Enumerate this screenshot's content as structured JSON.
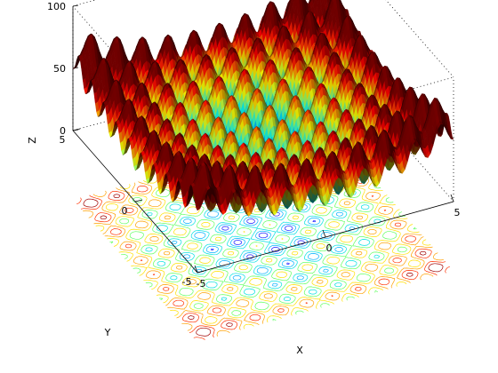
{
  "chart_data": {
    "type": "surface",
    "function": "Rastrigin",
    "formula": "Z = 20 + X^2 + Y^2 - 10*(cos(2*pi*X) + cos(2*pi*Y))",
    "grid_step": 0.1,
    "xlim": [
      -5,
      5
    ],
    "ylim": [
      -5,
      5
    ],
    "zlim": [
      0,
      100
    ],
    "xlabel": "X",
    "ylabel": "Y",
    "zlabel": "Z",
    "x_ticks": [
      {
        "value": -5,
        "label": "-5"
      },
      {
        "value": 0,
        "label": "0"
      },
      {
        "value": 5,
        "label": "5"
      }
    ],
    "y_ticks": [
      {
        "value": -5,
        "label": "-5"
      },
      {
        "value": 0,
        "label": "0"
      },
      {
        "value": 5,
        "label": "5"
      }
    ],
    "z_ticks": [
      {
        "value": 0,
        "label": "0"
      },
      {
        "value": 50,
        "label": "50"
      },
      {
        "value": 100,
        "label": "100"
      }
    ],
    "colormap": [
      "#00008f",
      "#0000ff",
      "#0080ff",
      "#00ffff",
      "#80ff80",
      "#ffff00",
      "#ff8000",
      "#ff0000",
      "#800000"
    ],
    "contour_on_floor": true,
    "contour_levels": [
      5,
      12,
      20,
      30,
      40,
      50,
      60,
      70
    ],
    "grid": false,
    "box": true,
    "legend": "none"
  }
}
